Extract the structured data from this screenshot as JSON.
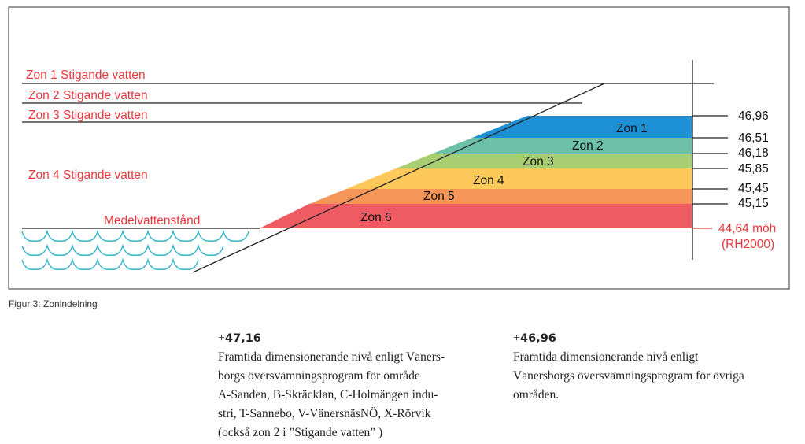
{
  "diagram": {
    "top_labels": [
      "Zon 1 Stigande vatten",
      "Zon 2 Stigande vatten",
      "Zon 3 Stigande vatten",
      "Zon 4 Stigande vatten"
    ],
    "mean_water_label": "Medelvattenstånd",
    "zones": [
      {
        "name": "Zon 1",
        "color": "#1e90d6"
      },
      {
        "name": "Zon 2",
        "color": "#6cc0a6"
      },
      {
        "name": "Zon 3",
        "color": "#a9cd71"
      },
      {
        "name": "Zon 4",
        "color": "#fdc95a"
      },
      {
        "name": "Zon 5",
        "color": "#f59558"
      },
      {
        "name": "Zon 6",
        "color": "#ef5b63"
      }
    ],
    "levels": [
      "46,96",
      "46,51",
      "46,18",
      "45,85",
      "45,45",
      "45,15"
    ],
    "reference_level": "44,64 möh",
    "reference_system": "(RH2000)",
    "colors": {
      "label_red": "#e8383d",
      "water": "#39b6cf"
    }
  },
  "caption": "Figur 3: Zonindelning",
  "notes": [
    {
      "value_prefix": "+",
      "value": "47,16",
      "lines": [
        "Framtida dimensionerande nivå enligt Väners-",
        "borgs översvämningsprogram för område",
        "A-Sanden, B-Skräcklan, C-Holmängen indu-",
        "stri, T-Sannebo, V-VänersnäsNÖ, X-Rörvik",
        "(också zon 2 i ”Stigande vatten” )"
      ]
    },
    {
      "value_prefix": "+",
      "value": "46,96",
      "lines": [
        "Framtida dimensionerande nivå enligt",
        "Vänersborgs översvämningsprogram för övriga",
        "områden."
      ]
    }
  ]
}
